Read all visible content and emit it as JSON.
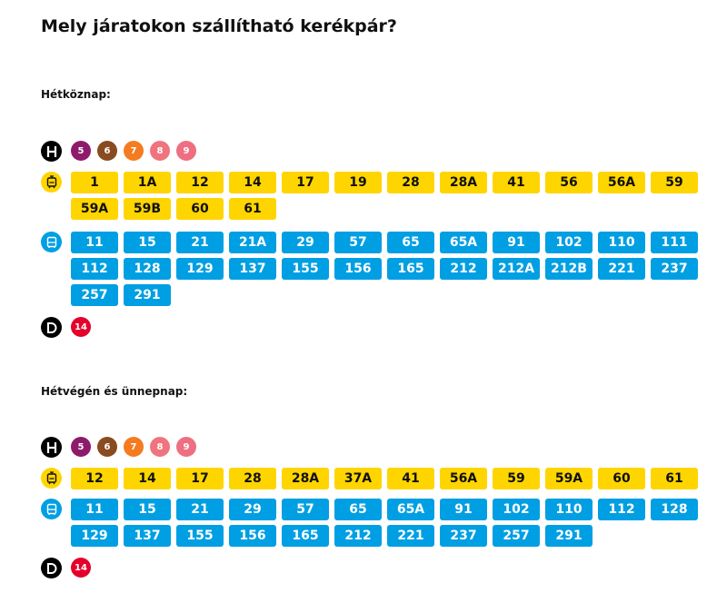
{
  "title": "Mely járatokon szállítható kerékpár?",
  "colors": {
    "tram": "#FFD500",
    "bus": "#009FE3",
    "metro_icon": "#000000",
    "m5": "#8E1A6B",
    "m6": "#894B1F",
    "m7": "#F57B20",
    "m8": "#F0747E",
    "m9": "#EE6F81",
    "boat": "#E4002B"
  },
  "weekday": {
    "label": "Hétköznap:",
    "hev_icon": "hev-icon",
    "hev": [
      "5",
      "6",
      "7",
      "8",
      "9"
    ],
    "tram_icon": "tram-icon",
    "tram": [
      "1",
      "1A",
      "12",
      "14",
      "17",
      "19",
      "28",
      "28A",
      "41",
      "56",
      "56A",
      "59",
      "59A",
      "59B",
      "60",
      "61"
    ],
    "bus_icon": "bus-icon",
    "bus": [
      "11",
      "15",
      "21",
      "21A",
      "29",
      "57",
      "65",
      "65A",
      "91",
      "102",
      "110",
      "111",
      "112",
      "128",
      "129",
      "137",
      "155",
      "156",
      "165",
      "212",
      "212A",
      "212B",
      "221",
      "237",
      "257",
      "291"
    ],
    "boat_icon": "boat-icon",
    "boat": [
      "14"
    ]
  },
  "weekend": {
    "label": "Hétvégén és ünnepnap:",
    "hev_icon": "hev-icon",
    "hev": [
      "5",
      "6",
      "7",
      "8",
      "9"
    ],
    "tram_icon": "tram-icon",
    "tram": [
      "12",
      "14",
      "17",
      "28",
      "28A",
      "37A",
      "41",
      "56A",
      "59",
      "59A",
      "60",
      "61"
    ],
    "bus_icon": "bus-icon",
    "bus": [
      "11",
      "15",
      "21",
      "29",
      "57",
      "65",
      "65A",
      "91",
      "102",
      "110",
      "112",
      "128",
      "129",
      "137",
      "155",
      "156",
      "165",
      "212",
      "221",
      "237",
      "257",
      "291"
    ],
    "boat_icon": "boat-icon",
    "boat": [
      "14"
    ]
  }
}
